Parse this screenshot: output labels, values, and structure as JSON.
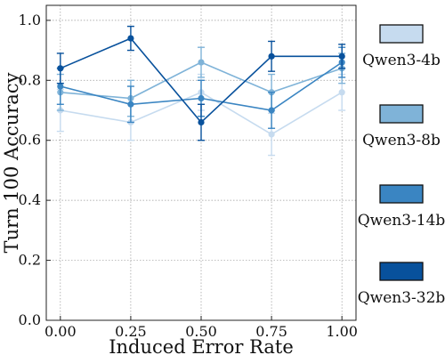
{
  "chart_data": {
    "type": "line",
    "xlabel": "Induced Error Rate",
    "ylabel": "Turn 100 Accuracy",
    "x": [
      0.0,
      0.25,
      0.5,
      0.75,
      1.0
    ],
    "x_tick_labels": [
      "0.00",
      "0.25",
      "0.50",
      "0.75",
      "1.00"
    ],
    "xlim": [
      -0.05,
      1.05
    ],
    "ylim": [
      0.0,
      1.05
    ],
    "y_ticks": [
      0.0,
      0.2,
      0.4,
      0.6,
      0.8,
      1.0
    ],
    "y_tick_labels": [
      "0.0",
      "0.2",
      "0.4",
      "0.6",
      "0.8",
      "1.0"
    ],
    "grid": true,
    "legend_position": "right",
    "series": [
      {
        "name": "Qwen3-4b",
        "color": "#c6dbef",
        "values": [
          0.7,
          0.66,
          0.76,
          0.62,
          0.76
        ],
        "errors": [
          0.07,
          0.06,
          0.06,
          0.07,
          0.06
        ]
      },
      {
        "name": "Qwen3-8b",
        "color": "#7fb3d8",
        "values": [
          0.76,
          0.74,
          0.86,
          0.76,
          0.84
        ],
        "errors": [
          0.06,
          0.06,
          0.05,
          0.06,
          0.05
        ]
      },
      {
        "name": "Qwen3-14b",
        "color": "#3a85c2",
        "values": [
          0.78,
          0.72,
          0.74,
          0.7,
          0.86
        ],
        "errors": [
          0.06,
          0.06,
          0.06,
          0.06,
          0.05
        ]
      },
      {
        "name": "Qwen3-32b",
        "color": "#08519c",
        "values": [
          0.84,
          0.94,
          0.66,
          0.88,
          0.88
        ],
        "errors": [
          0.05,
          0.04,
          0.06,
          0.05,
          0.04
        ]
      }
    ]
  }
}
